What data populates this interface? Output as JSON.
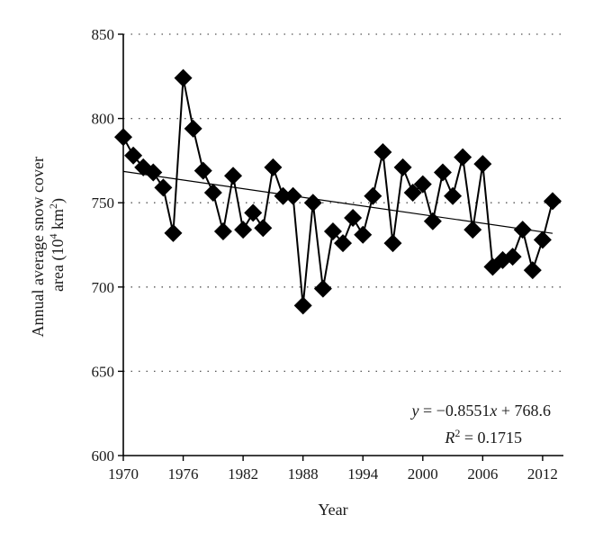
{
  "chart_data": {
    "type": "line",
    "xlabel": "Year",
    "ylabel_line1": "Annual average snow cover",
    "ylabel_line2_prefix": "area (10",
    "ylabel_line2_exp1": "4",
    "ylabel_line2_mid": " km",
    "ylabel_line2_exp2": "2",
    "ylabel_line2_suffix": ")",
    "xlim": [
      1970,
      2013
    ],
    "ylim": [
      600,
      850
    ],
    "x_ticks": [
      1970,
      1976,
      1982,
      1988,
      1994,
      2000,
      2006,
      2012
    ],
    "x_tick_labels": [
      "1970",
      "1976",
      "1982",
      "1988",
      "1994",
      "2000",
      "2006",
      "2012"
    ],
    "y_ticks": [
      600,
      650,
      700,
      750,
      800,
      850
    ],
    "y_tick_labels": [
      "600",
      "650",
      "700",
      "750",
      "800",
      "850"
    ],
    "grid": "horizontal-dotted",
    "series": [
      {
        "x": [
          1970,
          1971,
          1972,
          1973,
          1974,
          1975,
          1976,
          1977,
          1978,
          1979,
          1980,
          1981,
          1982,
          1983,
          1984,
          1985,
          1986,
          1987,
          1988,
          1989,
          1990,
          1991,
          1992,
          1993,
          1994,
          1995,
          1996,
          1997,
          1998,
          1999,
          2000,
          2001,
          2002,
          2003,
          2004,
          2005,
          2006,
          2007,
          2008,
          2009,
          2010,
          2011,
          2012,
          2013
        ],
        "values": [
          789,
          778,
          771,
          768,
          759,
          732,
          824,
          794,
          769,
          756,
          733,
          766,
          734,
          744,
          735,
          771,
          754,
          754,
          689,
          750,
          699,
          733,
          726,
          741,
          731,
          754,
          780,
          726,
          771,
          756,
          761,
          739,
          768,
          754,
          777,
          734,
          773,
          712,
          716,
          718,
          734,
          710,
          728,
          751
        ],
        "marker": "diamond",
        "color": "#000000"
      }
    ],
    "trendline": {
      "slope": -0.8551,
      "intercept": 768.6,
      "x0": 1970
    },
    "annotations": {
      "eq_y": "y",
      "eq_eq1": " = −0.8551",
      "eq_x": "x",
      "eq_rest": " + 768.6",
      "r2_R": "R",
      "r2_exp": "2",
      "r2_rest": " = 0.1715"
    }
  }
}
